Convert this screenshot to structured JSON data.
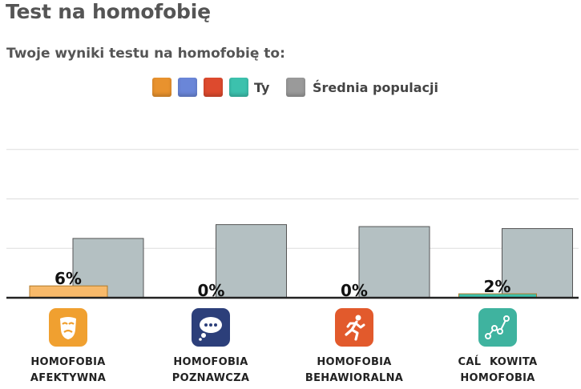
{
  "page": {
    "title": "Test na homofobię",
    "subtitle": "Twoje wyniki testu na homofobię to:"
  },
  "legend": {
    "you_label": "Ty",
    "avg_label": "Średnia populacji",
    "you_colors": [
      "#e8922e",
      "#6a86d8",
      "#dd4a2e",
      "#3cc1ad"
    ],
    "avg_color": "#9a9a9a"
  },
  "categories": [
    {
      "line1": "HOMOFOBIA",
      "line2": "AFEKTYWNA",
      "icon": "mask-icon",
      "color": "#f0a030"
    },
    {
      "line1": "HOMOFOBIA",
      "line2": "POZNAWCZA",
      "icon": "thought-bubble-icon",
      "color": "#2c3f7a"
    },
    {
      "line1": "HOMOFOBIA",
      "line2": "BEHAWIORALNA",
      "icon": "running-person-icon",
      "color": "#e25a2c"
    },
    {
      "line1": "CAĹKOWITA",
      "line2": "HOMOFOBIA",
      "icon": "network-graph-icon",
      "color": "#3fb39f"
    }
  ],
  "chart_data": {
    "type": "bar",
    "categories": [
      "HOMOFOBIA AFEKTYWNA",
      "HOMOFOBIA POZNAWCZA",
      "HOMOFOBIA BEHAWIORALNA",
      "CAĹKOWITA HOMOFOBIA"
    ],
    "series": [
      {
        "name": "Ty",
        "values": [
          6,
          0,
          0,
          2
        ],
        "labels": [
          "6%",
          "0%",
          "0%",
          "2%"
        ],
        "colors": [
          "#f7b96a",
          "#6a86d8",
          "#dd4a2e",
          "#3cc1ad"
        ]
      },
      {
        "name": "Średnia populacji",
        "values": [
          30,
          37,
          36,
          35
        ],
        "color": "#b4c0c2"
      }
    ],
    "ylim": [
      0,
      100
    ],
    "grid": true
  }
}
